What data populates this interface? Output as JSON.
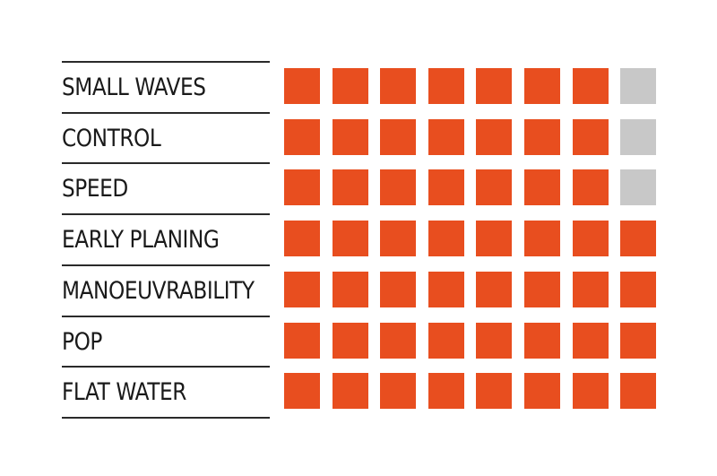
{
  "colors": {
    "filled": "#E84E1F",
    "empty": "#C8C8C8",
    "text": "#1A1A1A",
    "line": "#2A2A2A"
  },
  "chart_data": {
    "type": "rating-grid",
    "max_rating": 8,
    "rows": [
      {
        "label": "SMALL WAVES",
        "rating": 7
      },
      {
        "label": "CONTROL",
        "rating": 7
      },
      {
        "label": "SPEED",
        "rating": 7
      },
      {
        "label": "EARLY PLANING",
        "rating": 8
      },
      {
        "label": "MANOEUVRABILITY",
        "rating": 8
      },
      {
        "label": "POP",
        "rating": 8
      },
      {
        "label": "FLAT WATER",
        "rating": 8
      }
    ]
  }
}
